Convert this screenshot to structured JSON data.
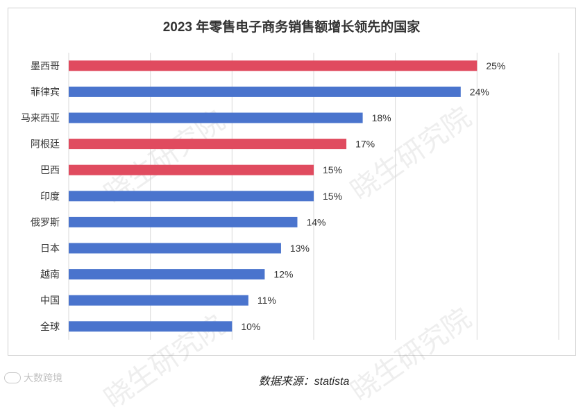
{
  "chart_data": {
    "type": "bar",
    "orientation": "horizontal",
    "title": "2023 年零售电子商务销售额增长领先的国家",
    "categories": [
      "墨西哥",
      "菲律宾",
      "马来西亚",
      "阿根廷",
      "巴西",
      "印度",
      "俄罗斯",
      "日本",
      "越南",
      "中国",
      "全球"
    ],
    "values": [
      25,
      24,
      18,
      17,
      15,
      15,
      14,
      13,
      12,
      11,
      10
    ],
    "value_labels": [
      "25%",
      "24%",
      "18%",
      "17%",
      "15%",
      "15%",
      "14%",
      "13%",
      "12%",
      "11%",
      "10%"
    ],
    "bar_colors": [
      "#e04b5f",
      "#4a74cd",
      "#4a74cd",
      "#e04b5f",
      "#e04b5f",
      "#4a74cd",
      "#4a74cd",
      "#4a74cd",
      "#4a74cd",
      "#4a74cd",
      "#4a74cd"
    ],
    "xlim": [
      0,
      30
    ],
    "grid": true,
    "legend": "none"
  },
  "source": "数据来源：statista",
  "watermark": "晓生研究院",
  "logo_text": "大数跨境"
}
